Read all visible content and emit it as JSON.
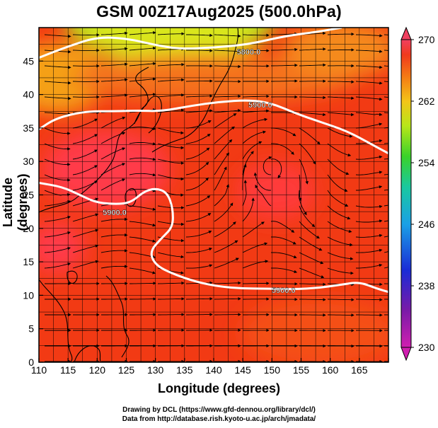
{
  "title": "GSM 00Z17Aug2025 (500.0hPa)",
  "axes": {
    "xlabel": "Longitude (degrees)",
    "ylabel": "Latitude  (degrees)"
  },
  "chart_data": {
    "type": "heatmap",
    "variable": "500hPa temperature with streamlines and geopotential height contours",
    "xlim": [
      110,
      170
    ],
    "ylim": [
      0,
      50
    ],
    "x_ticks": [
      "110",
      "115",
      "120",
      "125",
      "130",
      "135",
      "140",
      "145",
      "150",
      "155",
      "160",
      "165"
    ],
    "y_ticks": [
      "0",
      "5",
      "10",
      "15",
      "20",
      "25",
      "30",
      "35",
      "40",
      "45"
    ],
    "colorbar": {
      "min": 230,
      "max": 270,
      "tick_labels": [
        "270",
        "262",
        "254",
        "246",
        "238",
        "230"
      ]
    },
    "contours": [
      {
        "label": "5800.0",
        "points": [
          [
            110,
            45.5
          ],
          [
            115,
            47.2
          ],
          [
            120,
            48.6
          ],
          [
            125,
            48.4
          ],
          [
            130,
            47.4
          ],
          [
            134,
            46.8
          ],
          [
            140,
            47.0
          ],
          [
            146,
            47.5
          ],
          [
            152,
            48.7
          ],
          [
            158,
            49.4
          ],
          [
            162,
            50
          ]
        ]
      },
      {
        "label": "5900.0",
        "points": [
          [
            110,
            34.8
          ],
          [
            113,
            36.5
          ],
          [
            118,
            37.5
          ],
          [
            123,
            37.5
          ],
          [
            127,
            37.6
          ],
          [
            131,
            37.5
          ],
          [
            136,
            38.3
          ],
          [
            141,
            38.9
          ],
          [
            146,
            39.2
          ],
          [
            150,
            38.7
          ],
          [
            154,
            37.2
          ],
          [
            158,
            36.0
          ],
          [
            163,
            34.5
          ],
          [
            167,
            32.6
          ],
          [
            170,
            31.2
          ]
        ]
      },
      {
        "label": "5900.0",
        "points": [
          [
            110,
            26.8
          ],
          [
            114,
            26.2
          ],
          [
            117,
            25.0
          ],
          [
            120,
            23.8
          ],
          [
            124,
            23.6
          ],
          [
            126,
            24.0
          ],
          [
            128,
            25.5
          ],
          [
            130,
            26.0
          ],
          [
            132,
            25.4
          ],
          [
            133,
            23.0
          ],
          [
            133,
            20.2
          ],
          [
            131,
            18.5
          ],
          [
            129,
            16.5
          ],
          [
            130,
            14.5
          ],
          [
            133,
            13.2
          ],
          [
            137,
            12.0
          ],
          [
            141,
            11.3
          ],
          [
            145,
            11.0
          ],
          [
            149,
            11.0
          ],
          [
            154,
            10.9
          ],
          [
            158,
            11.1
          ],
          [
            162,
            11.6
          ],
          [
            165,
            12.0
          ],
          [
            168,
            11.0
          ],
          [
            170,
            10.5
          ]
        ]
      }
    ],
    "contour_label_positions": [
      [
        146,
        46.4
      ],
      [
        148,
        38.5
      ],
      [
        123,
        22.4
      ],
      [
        152,
        10.8
      ]
    ],
    "cold_region_center": [
      126,
      50
    ],
    "warm_cores": [
      [
        120,
        30
      ],
      [
        116,
        17
      ],
      [
        148,
        30
      ]
    ],
    "cyclone_center": [
      150,
      29.5
    ]
  },
  "footer": {
    "line1": "Drawing by DCL (https://www.gfd-dennou.org/library/dcl/)",
    "line2": "Data from http://database.rish.kyoto-u.ac.jp/arch/jmadata/"
  },
  "colors": {
    "warm": "#f23a14",
    "hot": "#ff3a4a",
    "cold": "#a9e81c",
    "contour": "#ffffff"
  }
}
